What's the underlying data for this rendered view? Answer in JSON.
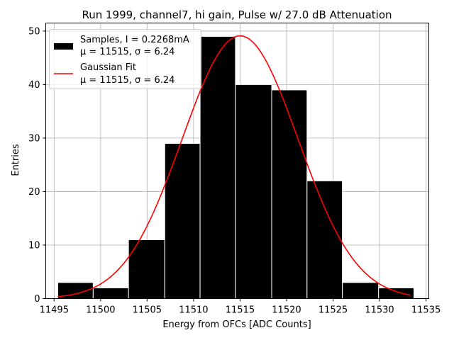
{
  "chart_data": {
    "type": "bar",
    "title": "Run 1999, channel7, hi gain, Pulse w/ 27.0 dB Attenuation",
    "xlabel": "Energy from OFCs [ADC Counts]",
    "ylabel": "Entries",
    "xlim": [
      11494.1,
      11535.3
    ],
    "ylim": [
      0,
      51.5
    ],
    "grid": true,
    "xticks": [
      11495,
      11500,
      11505,
      11510,
      11515,
      11520,
      11525,
      11530,
      11535
    ],
    "yticks": [
      0,
      10,
      20,
      30,
      40,
      50
    ],
    "bins": [
      {
        "left": 11495.4,
        "right": 11499.2,
        "value": 3
      },
      {
        "left": 11499.2,
        "right": 11503.0,
        "value": 2
      },
      {
        "left": 11503.0,
        "right": 11506.9,
        "value": 11
      },
      {
        "left": 11506.9,
        "right": 11510.7,
        "value": 29
      },
      {
        "left": 11510.7,
        "right": 11514.5,
        "value": 49
      },
      {
        "left": 11514.5,
        "right": 11518.4,
        "value": 40
      },
      {
        "left": 11518.4,
        "right": 11522.2,
        "value": 39
      },
      {
        "left": 11522.2,
        "right": 11526.0,
        "value": 22
      },
      {
        "left": 11526.0,
        "right": 11529.9,
        "value": 3
      },
      {
        "left": 11529.9,
        "right": 11533.7,
        "value": 2
      }
    ],
    "fit": {
      "mu": 11515,
      "sigma": 6.24,
      "amplitude": 49.1,
      "x_range": [
        11495.4,
        11533.3
      ]
    },
    "legend_position": "upper left",
    "series": [
      {
        "name": "Samples, I = 0.2268mA",
        "stats": "μ = 11515, σ = 6.24",
        "color": "#000000",
        "kind": "histogram"
      },
      {
        "name": "Gaussian Fit",
        "stats": "μ = 11515, σ = 6.24",
        "color": "#ff0000",
        "kind": "line"
      }
    ]
  }
}
